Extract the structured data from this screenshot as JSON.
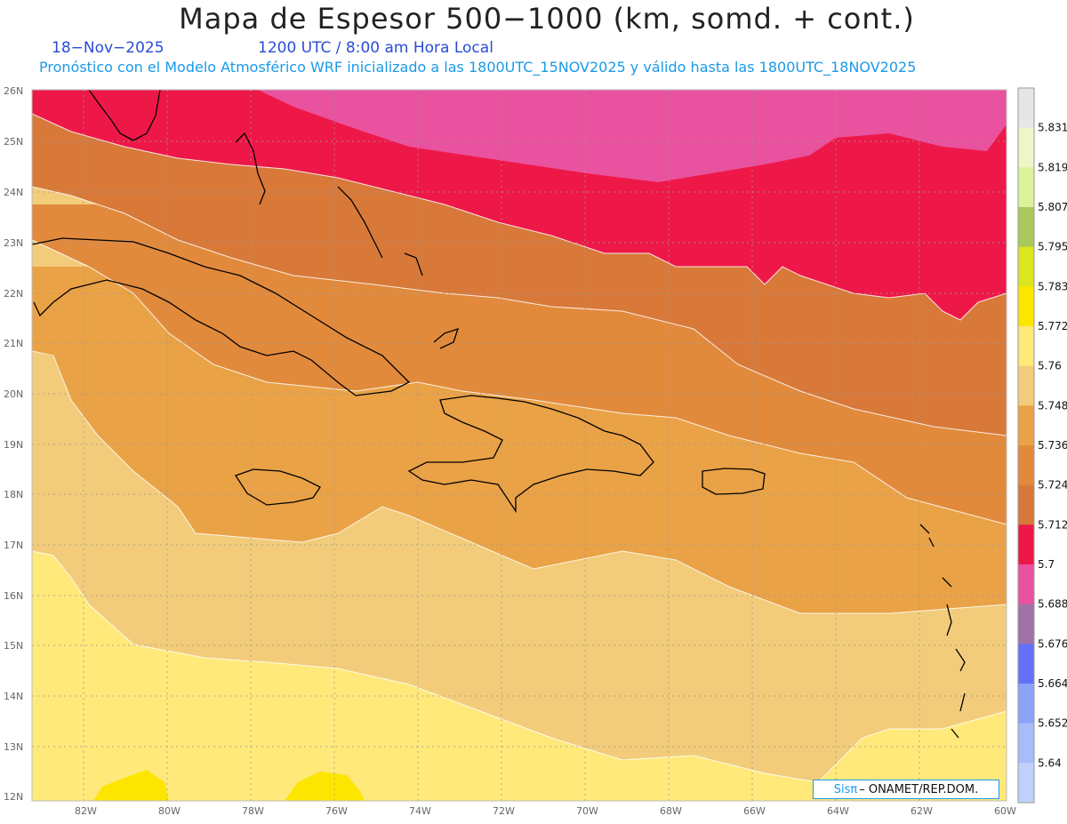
{
  "header": {
    "title": "Mapa de Espesor 500−1000 (km, somd. + cont.)",
    "date": "18−Nov−2025",
    "utc": "1200 UTC / 8:00 am Hora Local",
    "forecast": "Pronóstico con el Modelo Atmosférico WRF inicializado a las 1800UTC_15NOV2025 y válido hasta las  1800UTC_18NOV2025"
  },
  "axes": {
    "lat_labels": [
      "26N",
      "25N",
      "24N",
      "23N",
      "22N",
      "21N",
      "20N",
      "19N",
      "18N",
      "17N",
      "16N",
      "15N",
      "14N",
      "13N",
      "12N"
    ],
    "lon_labels": [
      "82W",
      "80W",
      "78W",
      "76W",
      "74W",
      "72W",
      "70W",
      "68W",
      "66W",
      "64W",
      "62W",
      "60W"
    ]
  },
  "colorbar": {
    "labels": [
      "5.831",
      "5.819",
      "5.807",
      "5.795",
      "5.783",
      "5.772",
      "5.76",
      "5.748",
      "5.736",
      "5.724",
      "5.712",
      "5.7",
      "5.688",
      "5.676",
      "5.664",
      "5.652",
      "5.64"
    ],
    "colors": [
      "#e6e6e6",
      "#f0f5c8",
      "#dcf29a",
      "#a9c95c",
      "#dbe61e",
      "#fce600",
      "#ffe97a",
      "#f2cc7a",
      "#eaa246",
      "#e28a3c",
      "#d8793a",
      "#ee1848",
      "#e9529e",
      "#9f72a8",
      "#6470f8",
      "#8aa4fa",
      "#a8bcfa",
      "#c0d0fa"
    ]
  },
  "map_colors": {
    "band_5688": "#e9529e",
    "band_5700": "#ee1848",
    "band_5712": "#d8793a",
    "band_5724": "#e28a3c",
    "band_5736": "#eaa246",
    "band_5748": "#f2cc7a",
    "band_5760": "#ffe97a",
    "band_5772": "#fce600"
  },
  "credit": {
    "sis": "Sisπ",
    "org": "– ONAMET/REP.DOM."
  }
}
